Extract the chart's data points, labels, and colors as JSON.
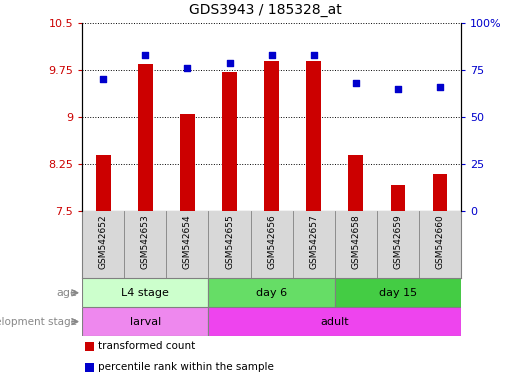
{
  "title": "GDS3943 / 185328_at",
  "samples": [
    "GSM542652",
    "GSM542653",
    "GSM542654",
    "GSM542655",
    "GSM542656",
    "GSM542657",
    "GSM542658",
    "GSM542659",
    "GSM542660"
  ],
  "transformed_count": [
    8.4,
    9.85,
    9.05,
    9.72,
    9.9,
    9.9,
    8.4,
    7.92,
    8.1
  ],
  "percentile_rank": [
    70,
    83,
    76,
    79,
    83,
    83,
    68,
    65,
    66
  ],
  "ylim_left": [
    7.5,
    10.5
  ],
  "ylim_right": [
    0,
    100
  ],
  "yticks_left": [
    7.5,
    8.25,
    9.0,
    9.75,
    10.5
  ],
  "yticks_right": [
    0,
    25,
    50,
    75,
    100
  ],
  "ytick_labels_left": [
    "7.5",
    "8.25",
    "9",
    "9.75",
    "10.5"
  ],
  "ytick_labels_right": [
    "0",
    "25",
    "50",
    "75",
    "100%"
  ],
  "bar_color": "#cc0000",
  "dot_color": "#0000cc",
  "age_groups": [
    {
      "label": "L4 stage",
      "start": 0,
      "end": 3,
      "color": "#ccffcc"
    },
    {
      "label": "day 6",
      "start": 3,
      "end": 6,
      "color": "#66dd66"
    },
    {
      "label": "day 15",
      "start": 6,
      "end": 9,
      "color": "#44cc44"
    }
  ],
  "dev_groups": [
    {
      "label": "larval",
      "start": 0,
      "end": 3,
      "color": "#ee88ee"
    },
    {
      "label": "adult",
      "start": 3,
      "end": 9,
      "color": "#ee44ee"
    }
  ],
  "legend_items": [
    {
      "color": "#cc0000",
      "label": "transformed count"
    },
    {
      "color": "#0000cc",
      "label": "percentile rank within the sample"
    }
  ],
  "grid_color": "#000000",
  "tick_color_left": "#cc0000",
  "tick_color_right": "#0000cc",
  "axis_label_age": "age",
  "axis_label_dev": "development stage",
  "bar_bottom": 7.5,
  "bar_width": 0.35,
  "dot_size": 25
}
